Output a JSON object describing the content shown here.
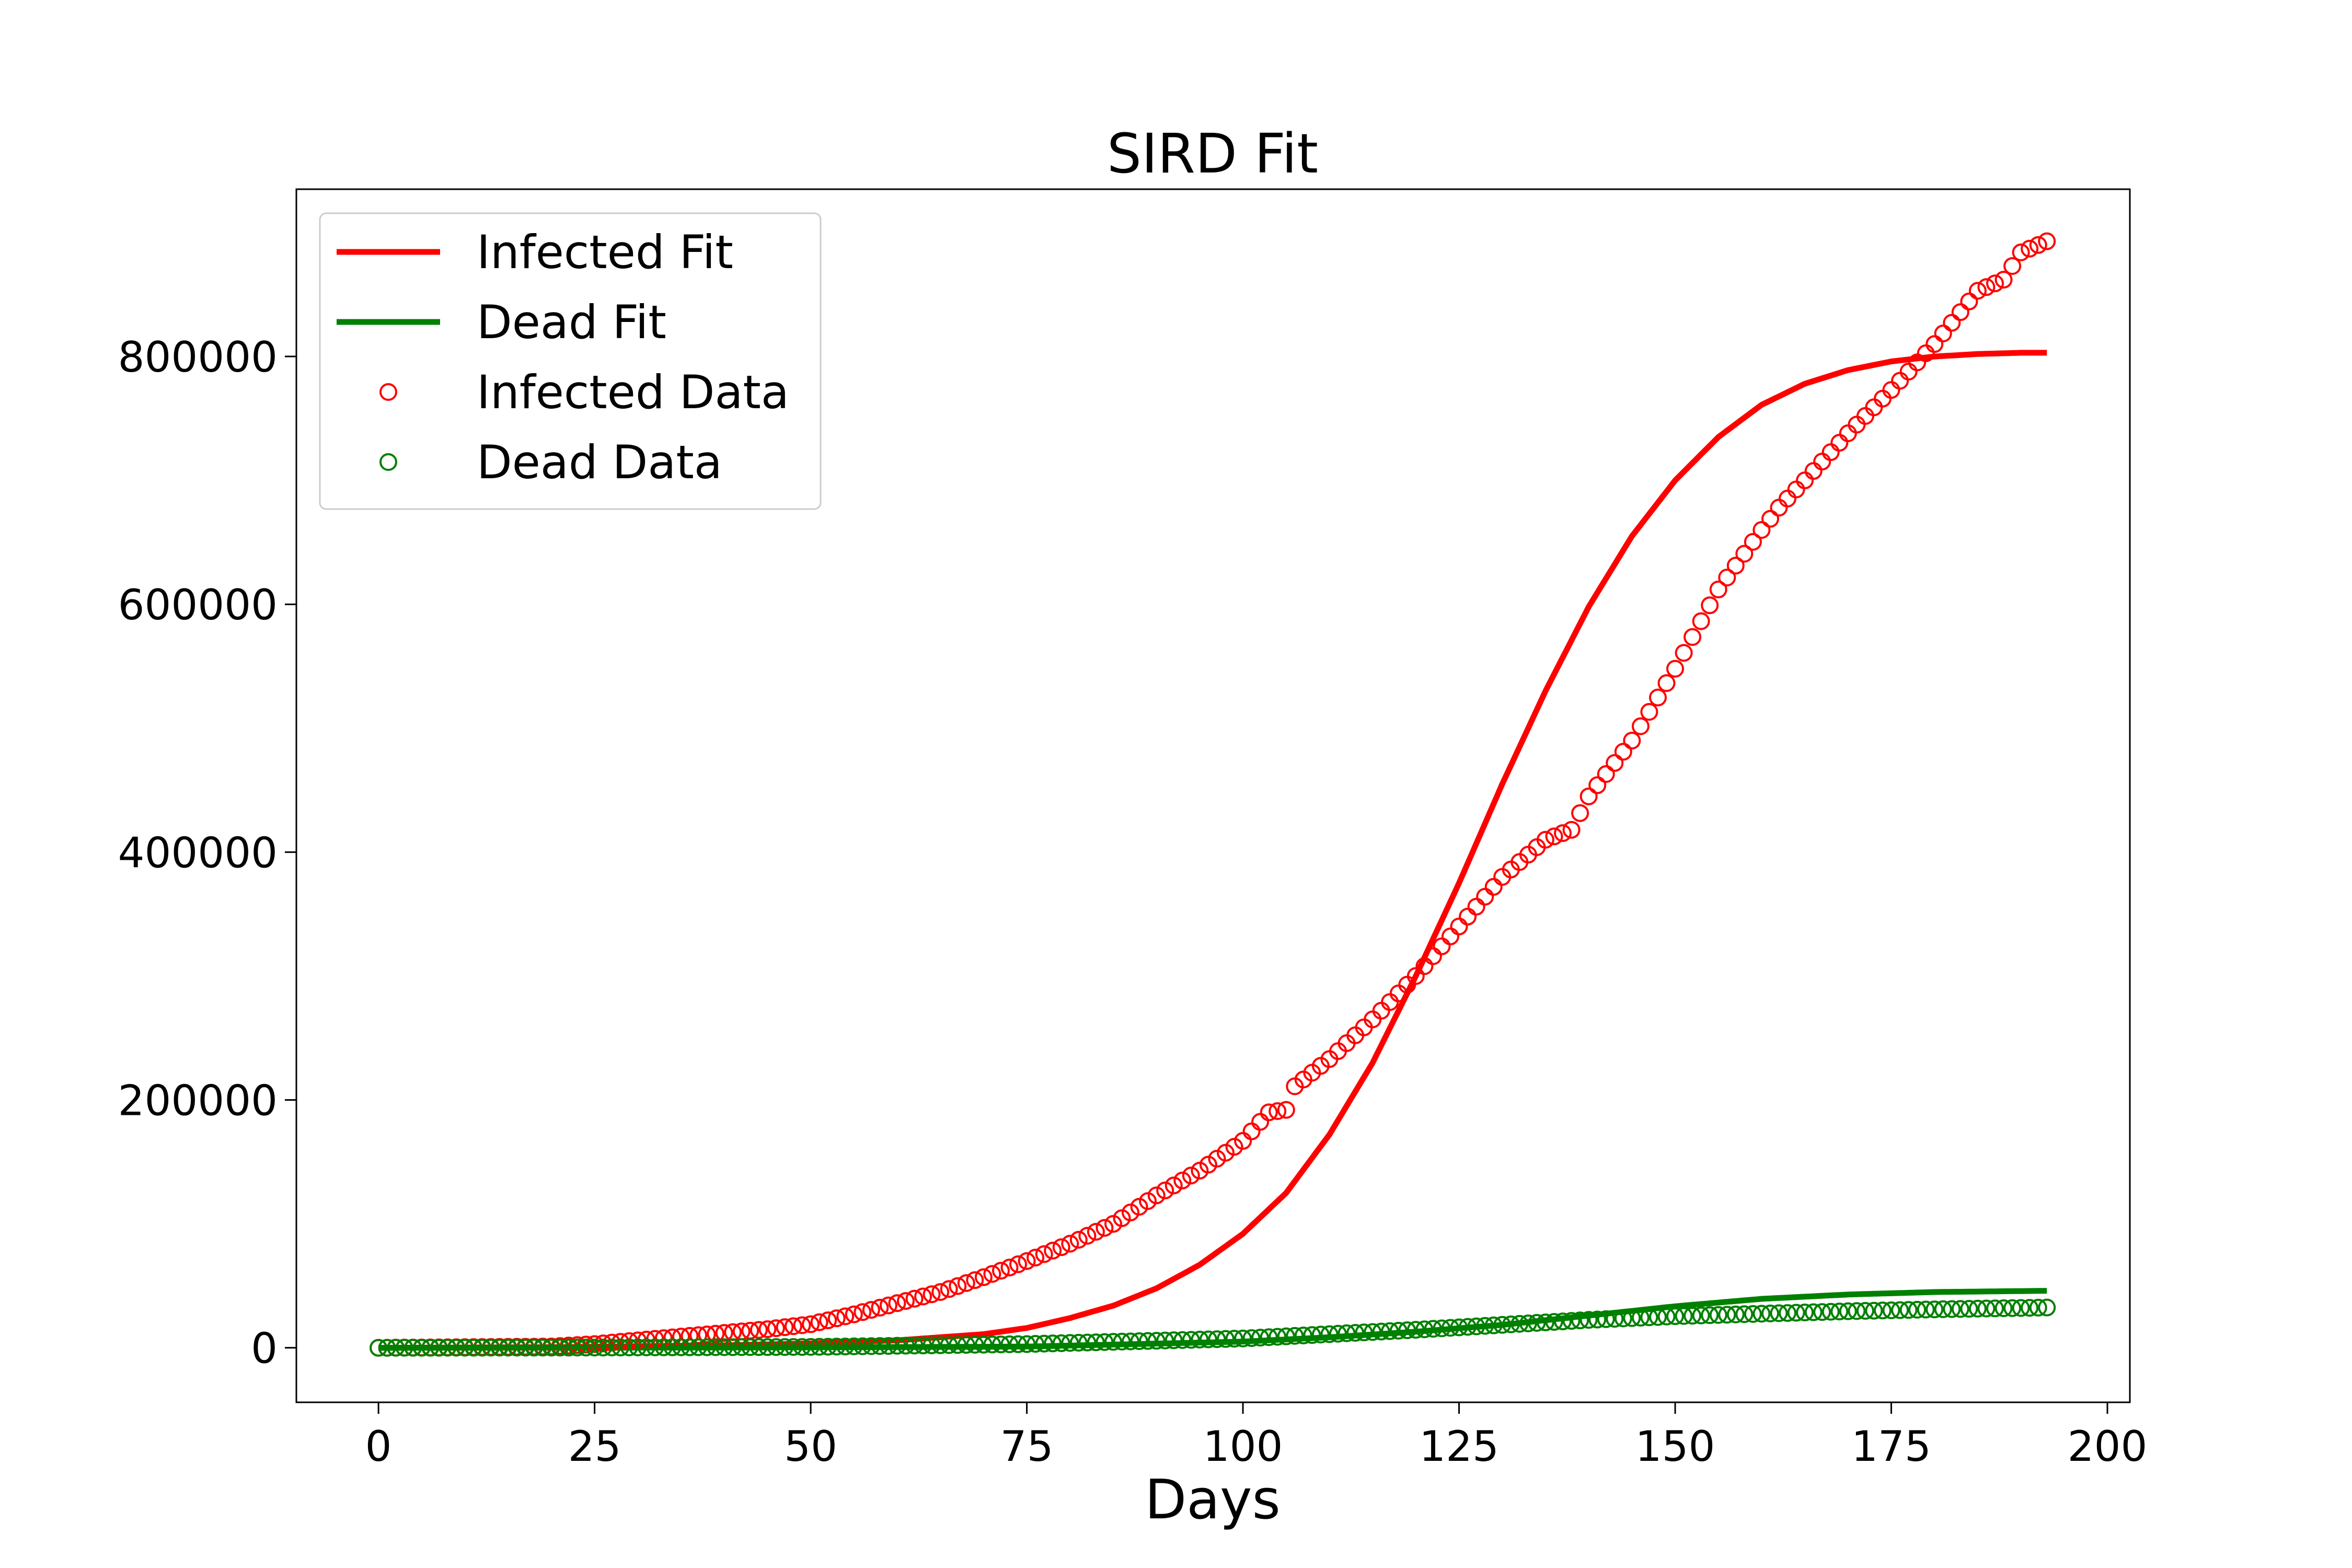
{
  "chart_data": {
    "type": "line",
    "title": "SIRD Fit",
    "xlabel": "Days",
    "ylabel": "",
    "xlim": [
      -9.5,
      202.6
    ],
    "ylim": [
      -44000,
      935000
    ],
    "xticks": [
      0,
      25,
      50,
      75,
      100,
      125,
      150,
      175,
      200
    ],
    "yticks": [
      0,
      200000,
      400000,
      600000,
      800000
    ],
    "grid": false,
    "legend_position": "top-left",
    "series": [
      {
        "name": "Infected Fit",
        "kind": "line",
        "color": "#ff0000",
        "x": [
          0,
          20,
          40,
          50,
          60,
          70,
          75,
          80,
          85,
          90,
          95,
          100,
          105,
          110,
          115,
          120,
          125,
          130,
          135,
          140,
          145,
          150,
          155,
          160,
          165,
          170,
          175,
          180,
          185,
          190,
          193
        ],
        "y": [
          0,
          500,
          2000,
          3500,
          6000,
          11000,
          16000,
          24000,
          34000,
          48000,
          67000,
          92000,
          125000,
          172000,
          230000,
          300000,
          375000,
          455000,
          530000,
          598000,
          655000,
          700000,
          735000,
          761000,
          778000,
          789000,
          796000,
          800000,
          802000,
          803000,
          803000
        ]
      },
      {
        "name": "Dead Fit",
        "kind": "line",
        "color": "#008000",
        "x": [
          0,
          25,
          50,
          75,
          100,
          110,
          120,
          130,
          140,
          150,
          160,
          170,
          180,
          193
        ],
        "y": [
          0,
          100,
          300,
          1000,
          5000,
          8500,
          13000,
          18500,
          26000,
          33500,
          39500,
          43000,
          45000,
          46000
        ]
      },
      {
        "name": "Infected Data",
        "kind": "scatter",
        "color": "#ff0000",
        "x": [
          0,
          10,
          20,
          25,
          30,
          35,
          40,
          45,
          50,
          55,
          60,
          65,
          70,
          75,
          80,
          85,
          90,
          95,
          100,
          103,
          105,
          106,
          110,
          115,
          120,
          125,
          130,
          135,
          138,
          140,
          145,
          150,
          155,
          160,
          162,
          165,
          170,
          175,
          180,
          185,
          188,
          190,
          193
        ],
        "y": [
          0,
          500,
          1000,
          3000,
          6000,
          9000,
          12000,
          15000,
          19000,
          27000,
          36000,
          45000,
          57000,
          70000,
          84000,
          100000,
          123000,
          143000,
          167000,
          190000,
          192000,
          211000,
          233000,
          265000,
          300000,
          340000,
          380000,
          410000,
          418000,
          445000,
          490000,
          548000,
          612000,
          660000,
          678000,
          700000,
          738000,
          773000,
          810000,
          853000,
          862000,
          884000,
          893000
        ]
      },
      {
        "name": "Dead Data",
        "kind": "scatter",
        "color": "#008000",
        "x": [
          0,
          25,
          50,
          75,
          100,
          110,
          120,
          130,
          140,
          150,
          160,
          170,
          180,
          193
        ],
        "y": [
          0,
          200,
          700,
          3000,
          7500,
          11000,
          14500,
          18500,
          22500,
          25500,
          27500,
          29500,
          31000,
          32500
        ]
      }
    ]
  }
}
